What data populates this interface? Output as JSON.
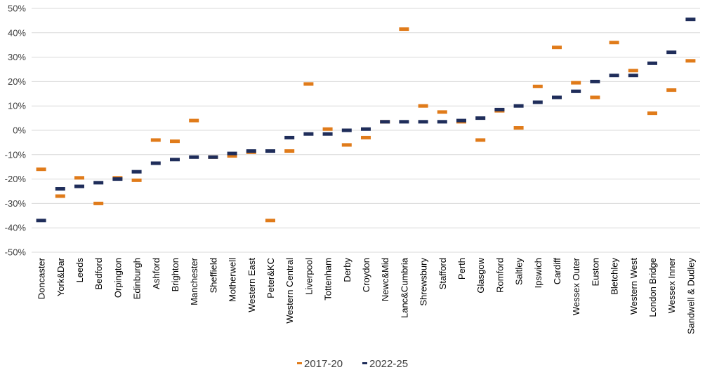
{
  "chart_data": {
    "type": "scatter",
    "marker": "dash",
    "categories": [
      "Doncaster",
      "York&Dar",
      "Leeds",
      "Bedford",
      "Orpington",
      "Edinburgh",
      "Ashford",
      "Brighton",
      "Manchester",
      "Sheffield",
      "Motherwell",
      "Western East",
      "Peter&KC",
      "Western Central",
      "Liverpool",
      "Tottenham",
      "Derby",
      "Croydon",
      "Newc&Mid",
      "Lanc&Cumbria",
      "Shrewsbury",
      "Stafford",
      "Perth",
      "Glasgow",
      "Romford",
      "Saltley",
      "Ipswich",
      "Cardiff",
      "Wessex Outer",
      "Euston",
      "Bletchley",
      "Western West",
      "London Bridge",
      "Wessex Inner",
      "Sandwell & Dudley"
    ],
    "series": [
      {
        "name": "2017-20",
        "color": "#E07B1A",
        "values": [
          -16,
          -27,
          -19.5,
          -30,
          -19.5,
          -20.5,
          -4,
          -4.5,
          4,
          -11,
          -10.5,
          -9,
          -37,
          -8.5,
          19,
          0.5,
          -6,
          -3,
          3.5,
          41.5,
          10,
          7.5,
          3.5,
          -4,
          8,
          1,
          18,
          34,
          19.5,
          13.5,
          36,
          24.5,
          7,
          16.5,
          28.5
        ]
      },
      {
        "name": "2022-25",
        "color": "#1F2D5A",
        "values": [
          -37,
          -24,
          -23,
          -21.5,
          -20,
          -17,
          -13.5,
          -12,
          -11,
          -11,
          -9.5,
          -8.5,
          -8.5,
          -3,
          -1.5,
          -1.5,
          0,
          0.5,
          3.5,
          3.5,
          3.5,
          3.5,
          4,
          5,
          8.5,
          10,
          11.5,
          13.5,
          16,
          20,
          22.5,
          22.5,
          27.5,
          32,
          45.5
        ]
      }
    ],
    "y_ticks": [
      "50%",
      "40%",
      "30%",
      "20%",
      "10%",
      "0%",
      "-10%",
      "-20%",
      "-30%",
      "-40%",
      "-50%"
    ],
    "ylim": [
      -50,
      50
    ],
    "y_format": "percent",
    "grid": true,
    "legend": {
      "position": "bottom",
      "entries": [
        "2017-20",
        "2022-25"
      ]
    },
    "xlabel": "",
    "ylabel": ""
  }
}
